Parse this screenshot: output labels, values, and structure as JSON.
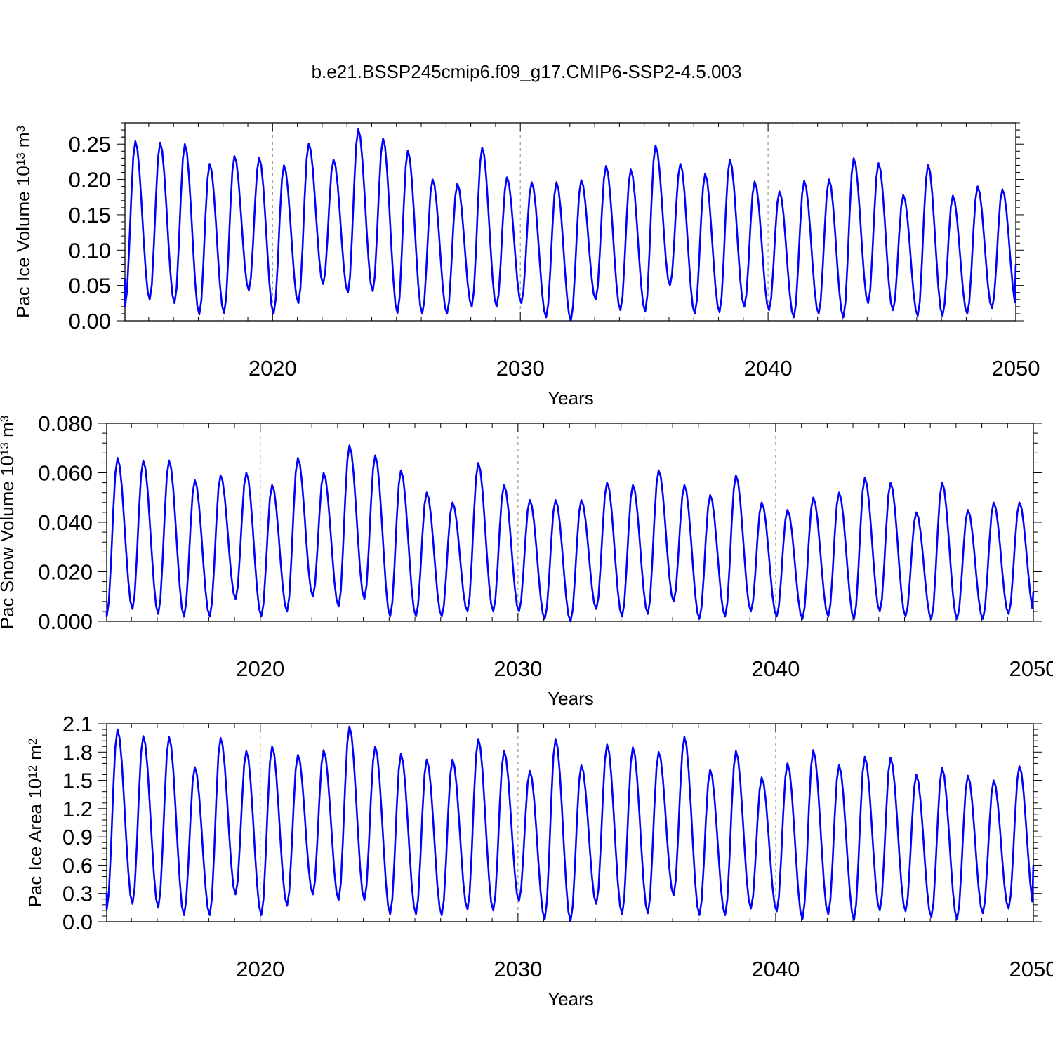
{
  "title": "b.e21.BSSP245cmip6.f09_g17.CMIP6-SSP2-4.5.003",
  "line_color": "#0000ff",
  "chart_data": [
    {
      "type": "line",
      "ylabel": "Pac Ice Volume 10",
      "ylabel_exp": "13",
      "ylabel_unit": " m",
      "ylabel_unit_exp": "3",
      "xlabel": "Years",
      "xlim": [
        2014.04,
        2050.0
      ],
      "ylim": [
        0.0,
        0.28
      ],
      "yticks": [
        0.0,
        0.05,
        0.1,
        0.15,
        0.2,
        0.25
      ],
      "ytick_labels": [
        "0.00",
        "0.05",
        "0.10",
        "0.15",
        "0.20",
        "0.25"
      ],
      "xticks": [
        2020,
        2030,
        2040,
        2050
      ],
      "xtick_labels": [
        "2020",
        "2030",
        "2040",
        "2050"
      ],
      "annual_max": [
        0.254,
        0.252,
        0.25,
        0.222,
        0.233,
        0.231,
        0.22,
        0.251,
        0.228,
        0.271,
        0.258,
        0.241,
        0.2,
        0.194,
        0.245,
        0.203,
        0.196,
        0.196,
        0.199,
        0.219,
        0.214,
        0.248,
        0.222,
        0.208,
        0.228,
        0.197,
        0.183,
        0.198,
        0.2,
        0.23,
        0.223,
        0.178,
        0.221,
        0.177,
        0.19,
        0.186
      ],
      "annual_min": [
        0.02,
        0.03,
        0.025,
        0.009,
        0.011,
        0.043,
        0.01,
        0.025,
        0.052,
        0.04,
        0.042,
        0.011,
        0.01,
        0.01,
        0.02,
        0.02,
        0.025,
        0.005,
        0.001,
        0.03,
        0.015,
        0.013,
        0.05,
        0.01,
        0.012,
        0.02,
        0.015,
        0.005,
        0.01,
        0.005,
        0.025,
        0.015,
        0.007,
        0.007,
        0.01,
        0.018
      ],
      "x_start": 2014.04,
      "y_start": 0.06,
      "y_end": 0.08
    },
    {
      "type": "line",
      "ylabel": "Pac Snow Volume 10",
      "ylabel_exp": "13",
      "ylabel_unit": " m",
      "ylabel_unit_exp": "3",
      "xlabel": "Years",
      "xlim": [
        2014.04,
        2050.0
      ],
      "ylim": [
        0.0,
        0.08
      ],
      "yticks": [
        0.0,
        0.02,
        0.04,
        0.06,
        0.08
      ],
      "ytick_labels": [
        "0.000",
        "0.020",
        "0.040",
        "0.060",
        "0.080"
      ],
      "xticks": [
        2020,
        2030,
        2040,
        2050
      ],
      "xtick_labels": [
        "2020",
        "2030",
        "2040",
        "2050"
      ],
      "annual_max": [
        0.066,
        0.065,
        0.065,
        0.057,
        0.059,
        0.06,
        0.055,
        0.066,
        0.06,
        0.071,
        0.067,
        0.061,
        0.052,
        0.048,
        0.064,
        0.055,
        0.049,
        0.049,
        0.049,
        0.056,
        0.055,
        0.061,
        0.055,
        0.051,
        0.059,
        0.048,
        0.045,
        0.05,
        0.052,
        0.058,
        0.056,
        0.044,
        0.056,
        0.045,
        0.048,
        0.048
      ],
      "annual_min": [
        0.002,
        0.005,
        0.003,
        0.002,
        0.002,
        0.009,
        0.002,
        0.004,
        0.01,
        0.006,
        0.009,
        0.002,
        0.002,
        0.002,
        0.004,
        0.004,
        0.004,
        0.001,
        0.0,
        0.005,
        0.002,
        0.003,
        0.008,
        0.001,
        0.002,
        0.004,
        0.002,
        0.001,
        0.002,
        0.001,
        0.004,
        0.002,
        0.001,
        0.001,
        0.001,
        0.003
      ],
      "x_start": 2014.04,
      "y_start": 0.004,
      "y_end": 0.012
    },
    {
      "type": "line",
      "ylabel": "Pac Ice Area 10",
      "ylabel_exp": "12",
      "ylabel_unit": " m",
      "ylabel_unit_exp": "2",
      "xlabel": "Years",
      "xlim": [
        2014.04,
        2050.0
      ],
      "ylim": [
        0.0,
        2.1
      ],
      "yticks": [
        0.0,
        0.3,
        0.6,
        0.9,
        1.2,
        1.5,
        1.8,
        2.1
      ],
      "ytick_labels": [
        "0.0",
        "0.3",
        "0.6",
        "0.9",
        "1.2",
        "1.5",
        "1.8",
        "2.1"
      ],
      "xticks": [
        2020,
        2030,
        2040,
        2050
      ],
      "xtick_labels": [
        "2020",
        "2030",
        "2040",
        "2050"
      ],
      "annual_max": [
        2.04,
        1.97,
        1.96,
        1.64,
        1.95,
        1.81,
        1.86,
        1.77,
        1.82,
        2.07,
        1.86,
        1.78,
        1.72,
        1.72,
        1.94,
        1.81,
        1.6,
        1.94,
        1.66,
        1.88,
        1.85,
        1.8,
        1.96,
        1.61,
        1.81,
        1.53,
        1.68,
        1.82,
        1.66,
        1.75,
        1.74,
        1.56,
        1.63,
        1.55,
        1.5,
        1.65
      ],
      "annual_min": [
        0.13,
        0.19,
        0.15,
        0.07,
        0.07,
        0.29,
        0.07,
        0.17,
        0.29,
        0.23,
        0.23,
        0.08,
        0.08,
        0.07,
        0.13,
        0.12,
        0.22,
        0.03,
        0.01,
        0.19,
        0.08,
        0.09,
        0.28,
        0.07,
        0.07,
        0.14,
        0.11,
        0.03,
        0.08,
        0.02,
        0.12,
        0.11,
        0.05,
        0.03,
        0.09,
        0.14
      ],
      "x_start": 2014.04,
      "y_start": 0.31,
      "y_end": 0.6
    }
  ]
}
